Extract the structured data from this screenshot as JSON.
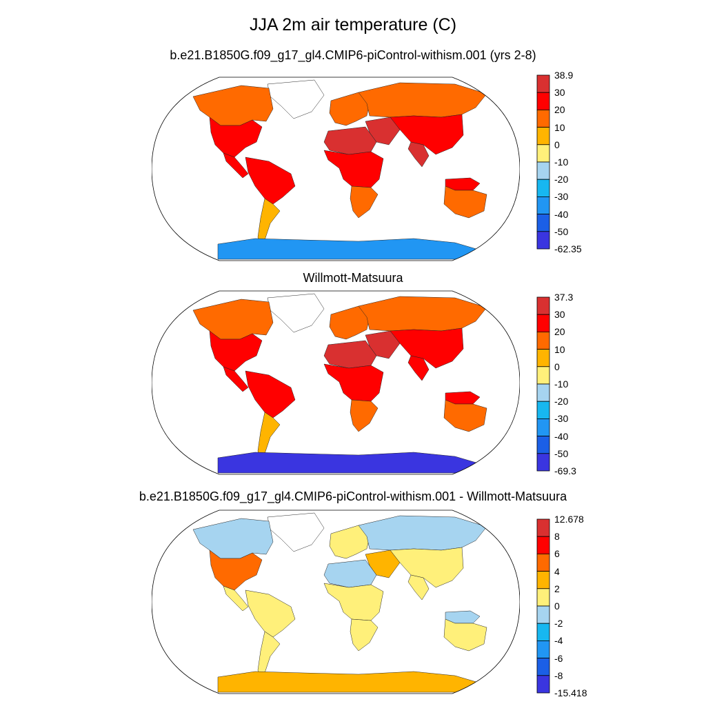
{
  "figure": {
    "title": "JJA 2m air temperature (C)"
  },
  "panels": [
    {
      "id": "model",
      "title": "b.e21.B1850G.f09_g17_gl4.CMIP6-piControl-withism.001 (yrs 2-8)",
      "colorbar": {
        "labels": [
          "38.9",
          "30",
          "20",
          "10",
          "0",
          "-10",
          "-20",
          "-30",
          "-40",
          "-50",
          "-62.35"
        ],
        "colors": [
          "#d93030",
          "#ff0000",
          "#ff6a00",
          "#ffb400",
          "#fff07a",
          "#a6d4f0",
          "#17b7f0",
          "#2196f3",
          "#1b5fe6",
          "#3a35e0"
        ]
      },
      "regions": {
        "north_america": "#ff6a00",
        "usa": "#ff0000",
        "central_america": "#ff0000",
        "south_america": "#ff0000",
        "south_america_south": "#ffb400",
        "europe": "#ff6a00",
        "russia": "#ff6a00",
        "middle_east": "#d93030",
        "africa": "#ff0000",
        "sahara": "#d93030",
        "africa_south": "#ff6a00",
        "asia_south": "#ff0000",
        "india": "#d93030",
        "australia": "#ff6a00",
        "australia_north": "#ff0000",
        "greenland": "#ffffff",
        "antarctica": "#2196f3"
      }
    },
    {
      "id": "obs",
      "title": "Willmott-Matsuura",
      "colorbar": {
        "labels": [
          "37.3",
          "30",
          "20",
          "10",
          "0",
          "-10",
          "-20",
          "-30",
          "-40",
          "-50",
          "-69.3"
        ],
        "colors": [
          "#d93030",
          "#ff0000",
          "#ff6a00",
          "#ffb400",
          "#fff07a",
          "#a6d4f0",
          "#17b7f0",
          "#2196f3",
          "#1b5fe6",
          "#3a35e0"
        ]
      },
      "regions": {
        "north_america": "#ff6a00",
        "usa": "#ff0000",
        "central_america": "#ff0000",
        "south_america": "#ff0000",
        "south_america_south": "#ffb400",
        "europe": "#ff6a00",
        "russia": "#ff6a00",
        "middle_east": "#d93030",
        "africa": "#ff0000",
        "sahara": "#d93030",
        "africa_south": "#ff6a00",
        "asia_south": "#ff0000",
        "india": "#ff0000",
        "australia": "#ff6a00",
        "australia_north": "#ff0000",
        "greenland": "#ffffff",
        "antarctica": "#3a35e0"
      }
    },
    {
      "id": "diff",
      "title": "b.e21.B1850G.f09_g17_gl4.CMIP6-piControl-withism.001 - Willmott-Matsuura",
      "colorbar": {
        "labels": [
          "12.678",
          "8",
          "6",
          "4",
          "2",
          "0",
          "-2",
          "-4",
          "-6",
          "-8",
          "-15.418"
        ],
        "colors": [
          "#d93030",
          "#ff0000",
          "#ff6a00",
          "#ffb400",
          "#fff07a",
          "#a6d4f0",
          "#17b7f0",
          "#2196f3",
          "#1b5fe6",
          "#3a35e0"
        ]
      },
      "regions": {
        "north_america": "#a6d4f0",
        "usa": "#ff6a00",
        "central_america": "#fff07a",
        "south_america": "#fff07a",
        "south_america_south": "#fff07a",
        "europe": "#fff07a",
        "russia": "#a6d4f0",
        "middle_east": "#ffb400",
        "africa": "#fff07a",
        "sahara": "#a6d4f0",
        "africa_south": "#fff07a",
        "asia_south": "#fff07a",
        "india": "#fff07a",
        "australia": "#fff07a",
        "australia_north": "#a6d4f0",
        "greenland": "#ffffff",
        "antarctica": "#ffb400"
      }
    }
  ]
}
